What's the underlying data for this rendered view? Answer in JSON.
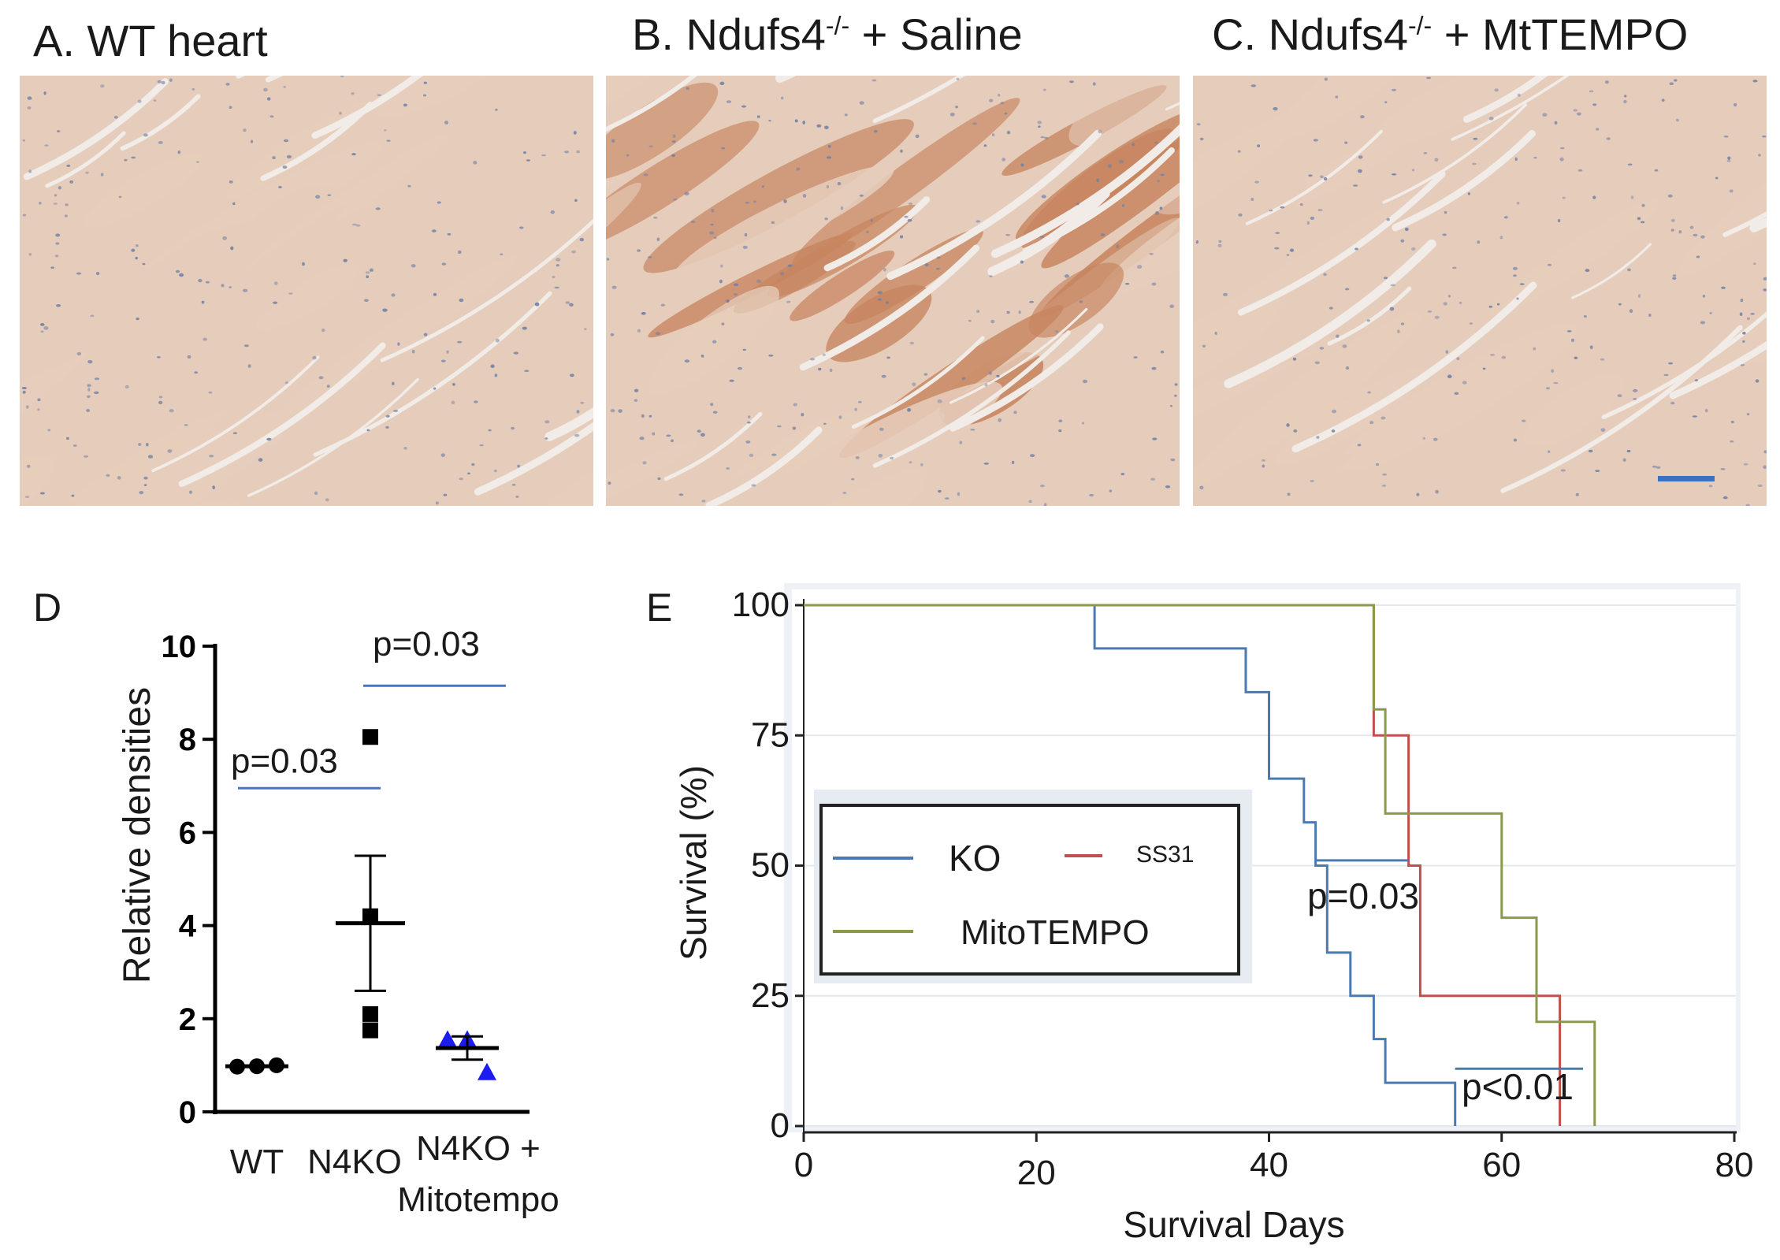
{
  "panels": [
    {
      "letter": "A.",
      "title": "WT heart",
      "superscript": "",
      "suffix": ""
    },
    {
      "letter": "B.",
      "title": "Ndufs4",
      "superscript": "-/-",
      "suffix": " + Saline"
    },
    {
      "letter": "C.",
      "title": "Ndufs4",
      "superscript": "-/-",
      "suffix": " + MtTEMPO"
    }
  ],
  "micro_colors": {
    "background": "#f1ece7",
    "tissue_light": "#e6cdbb",
    "tissue_dark": "#c7845f",
    "nuclei": "#6f7fa6",
    "scale_bar": "#3f6fc4"
  },
  "panel_d_label": "D",
  "panel_e_label": "E",
  "chart_data": [
    {
      "type": "scatter",
      "ylabel": "Relative densities",
      "ylim": [
        0,
        10
      ],
      "yticks": [
        "0",
        "2",
        "4",
        "6",
        "8",
        "10"
      ],
      "categories": [
        "WT",
        "N4KO",
        "N4KO +",
        "Mitotempo"
      ],
      "groups": [
        {
          "name": "WT",
          "points": [
            0.97,
            0.98,
            1.0
          ],
          "mean": 0.98,
          "sem": 0.01,
          "color": "#000000",
          "marker": "circle"
        },
        {
          "name": "N4KO",
          "points": [
            8.05,
            4.2,
            2.1,
            1.75
          ],
          "mean": 4.05,
          "sem": 1.45,
          "color": "#000000",
          "marker": "square"
        },
        {
          "name": "N4KO + Mitotempo",
          "points": [
            1.55,
            1.55,
            0.85
          ],
          "mean": 1.37,
          "sem": 0.25,
          "color": "#1c1cf0",
          "marker": "triangle"
        }
      ],
      "annotations": [
        {
          "text": "p=0.03",
          "y": 6.95,
          "between": [
            "WT",
            "N4KO"
          ]
        },
        {
          "text": "p=0.03",
          "y": 9.15,
          "between": [
            "N4KO",
            "N4KO + Mitotempo"
          ]
        }
      ],
      "annotation_color": "#4a72c8"
    },
    {
      "type": "line",
      "xlabel": "Survival Days",
      "ylabel": "Survival  (%)",
      "xlim": [
        0,
        80
      ],
      "ylim": [
        0,
        100
      ],
      "xticks": [
        "0",
        "20",
        "40",
        "60",
        "80"
      ],
      "yticks": [
        "0",
        "25",
        "50",
        "75",
        "100"
      ],
      "grid": true,
      "legend_position": "left",
      "legend": [
        "KO",
        "SS31",
        "MitoTEMPO"
      ],
      "series": [
        {
          "name": "KO",
          "color": "#4a7ab0",
          "x": [
            0,
            25,
            25,
            38,
            38,
            40,
            40,
            43,
            43,
            44,
            44,
            45,
            45,
            47,
            47,
            49,
            49,
            50,
            50,
            56,
            56
          ],
          "y": [
            100,
            100,
            91.7,
            91.7,
            83.3,
            83.3,
            66.7,
            66.7,
            58.3,
            58.3,
            50,
            50,
            33.3,
            33.3,
            25,
            25,
            16.7,
            16.7,
            8.3,
            8.3,
            0
          ]
        },
        {
          "name": "SS31",
          "color": "#c0504d",
          "x": [
            0,
            49,
            49,
            52,
            52,
            53,
            53,
            60,
            60,
            65,
            65
          ],
          "y": [
            100,
            100,
            75,
            75,
            50,
            50,
            25,
            25,
            25,
            25,
            0
          ]
        },
        {
          "name": "MitoTEMPO",
          "color": "#8a9a4a",
          "x": [
            0,
            49,
            49,
            50,
            50,
            60,
            60,
            63,
            63,
            68,
            68
          ],
          "y": [
            100,
            100,
            80,
            80,
            60,
            60,
            40,
            40,
            20,
            20,
            0
          ]
        }
      ],
      "censor_lines": [
        {
          "x0": 44,
          "x1": 52,
          "y": 51,
          "color": "#4a7ab0"
        },
        {
          "x0": 56,
          "x1": 67,
          "y": 11,
          "color": "#4a7ab0"
        }
      ],
      "annotations": [
        {
          "text": "p=0.03"
        },
        {
          "text": "p<0.01"
        }
      ]
    }
  ]
}
